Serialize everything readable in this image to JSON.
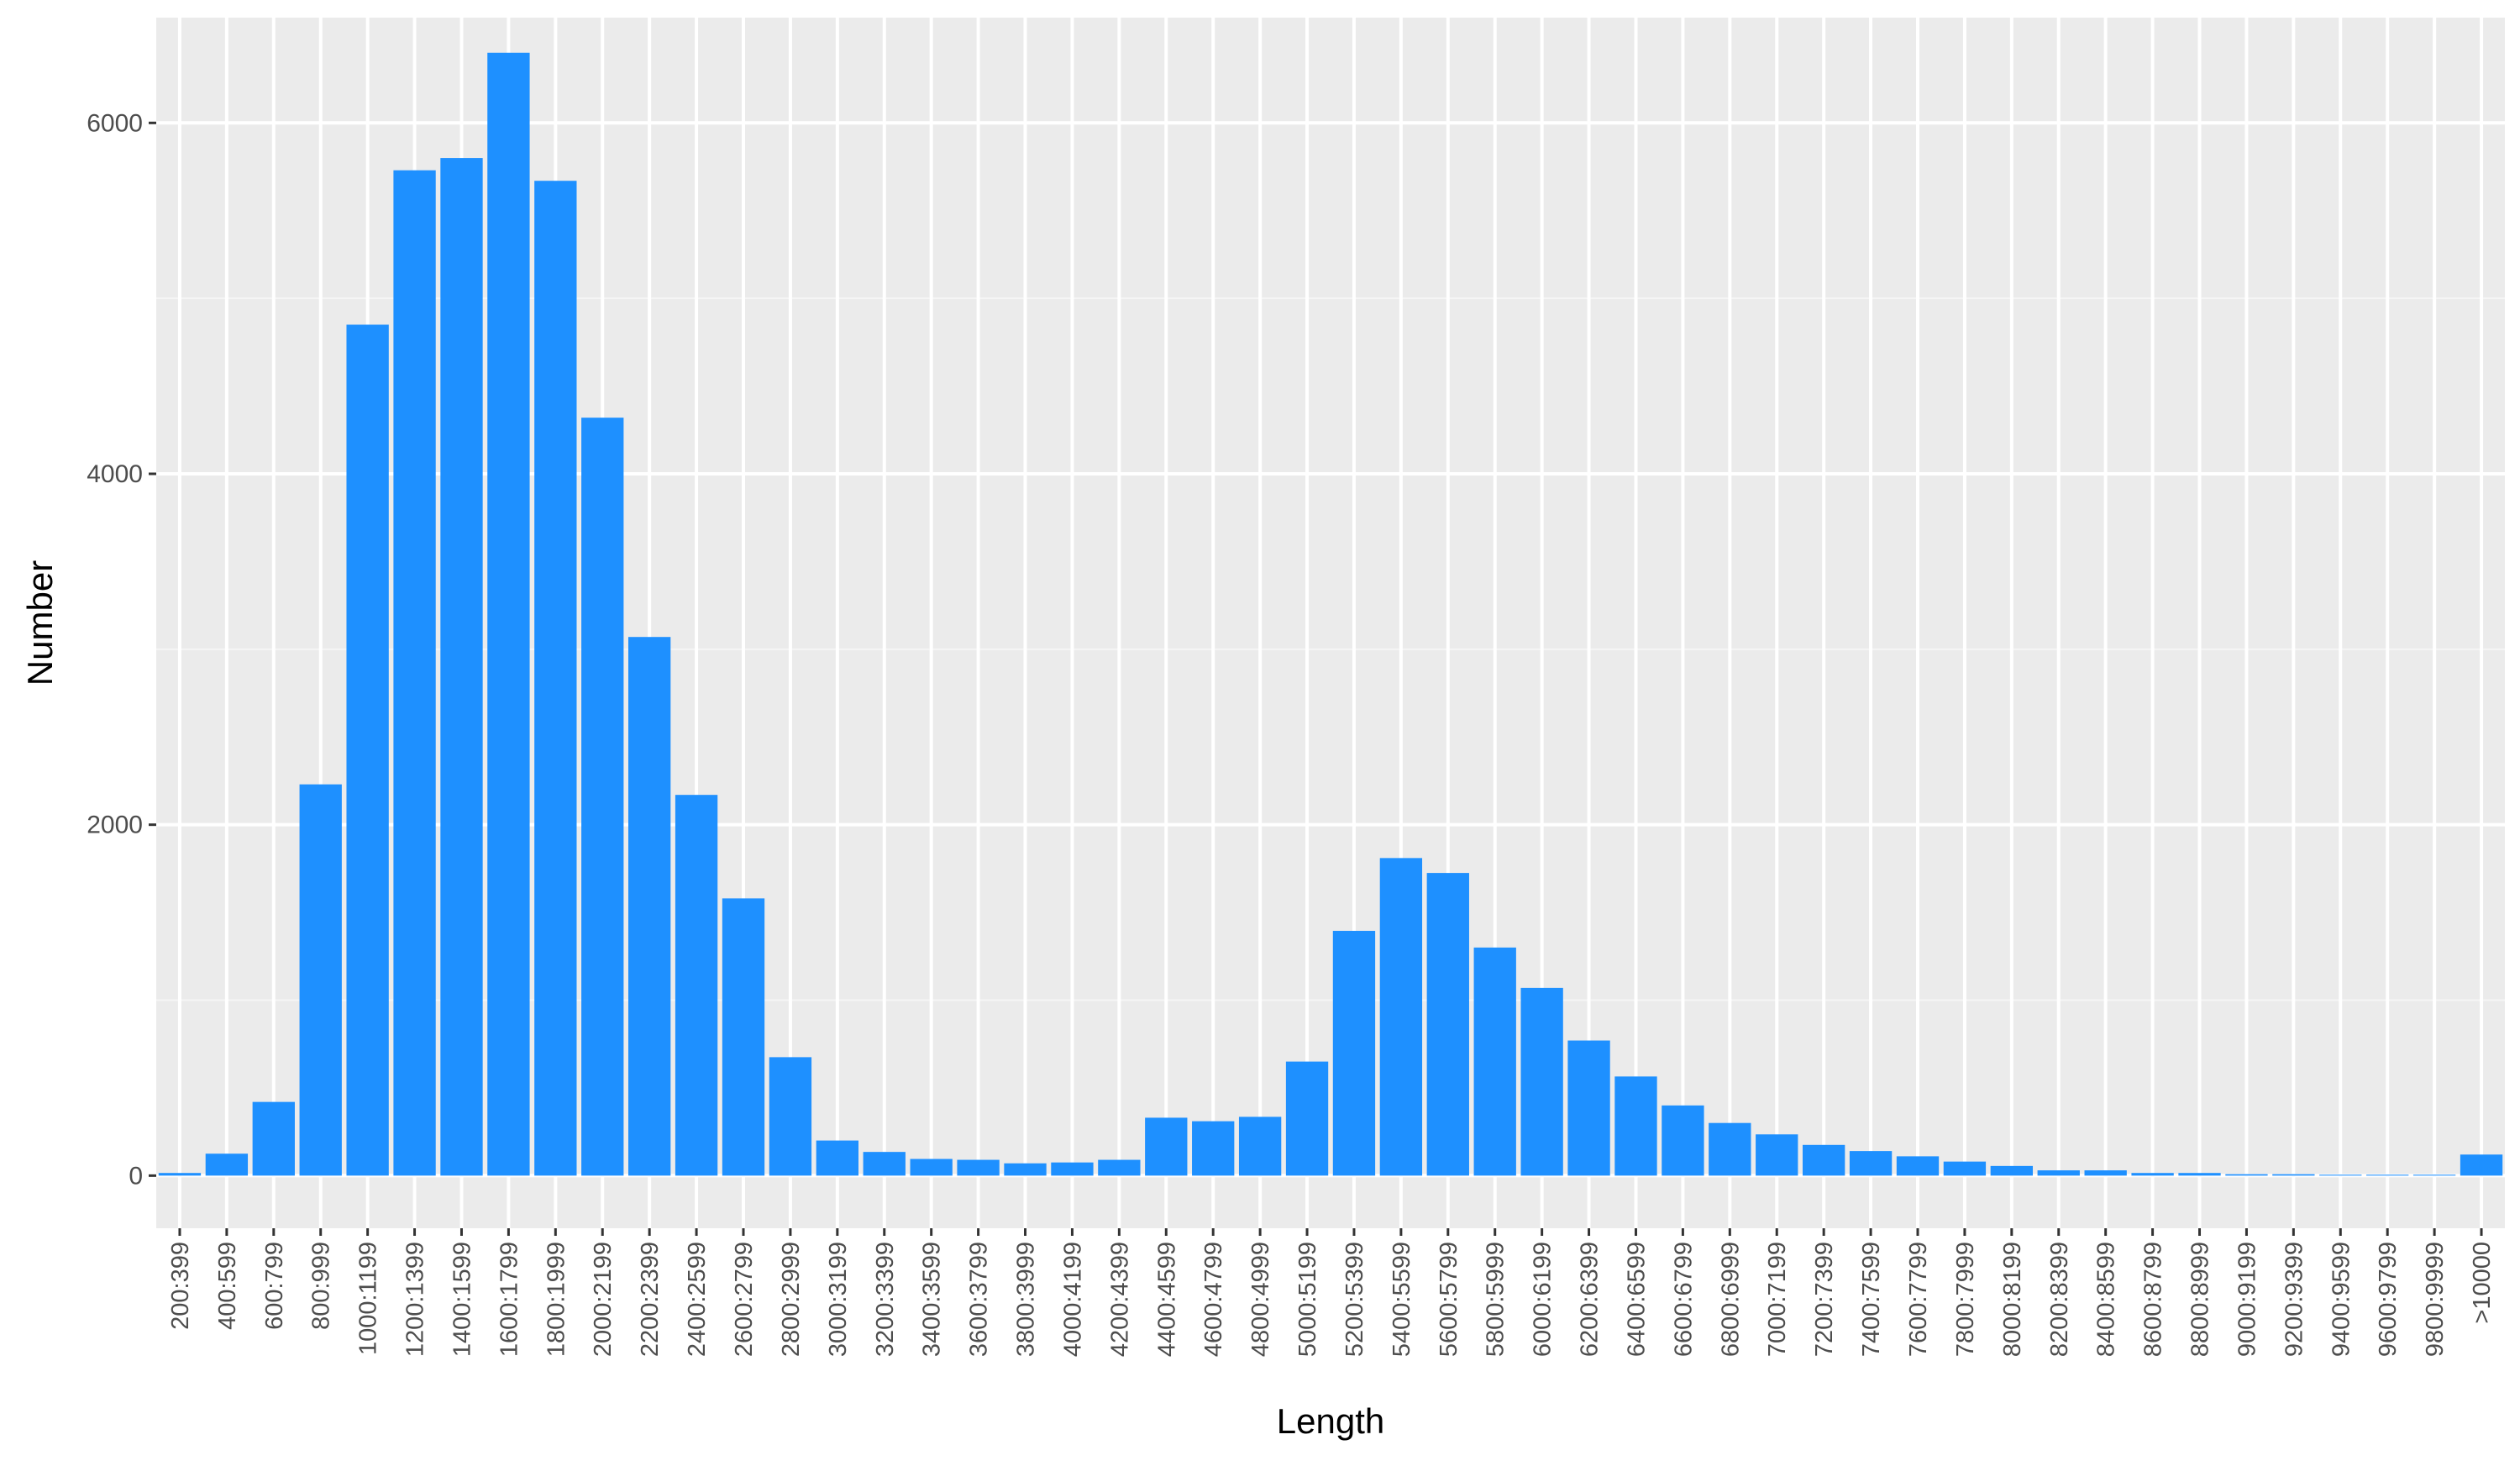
{
  "chart_data": {
    "type": "bar",
    "title": "",
    "xlabel": "Length",
    "ylabel": "Number",
    "ylim": [
      -300,
      6600
    ],
    "yticks": [
      0,
      2000,
      4000,
      6000
    ],
    "grid": true,
    "legend": "none",
    "colors": {
      "bar": "#1e90ff",
      "panel": "#ebebeb",
      "grid_major": "#ffffff",
      "grid_minor": "#f5f5f5",
      "tick_label": "#4d4d4d",
      "axis_title": "#000000"
    },
    "categories": [
      "200:399",
      "400:599",
      "600:799",
      "800:999",
      "1000:1199",
      "1200:1399",
      "1400:1599",
      "1600:1799",
      "1800:1999",
      "2000:2199",
      "2200:2399",
      "2400:2599",
      "2600:2799",
      "2800:2999",
      "3000:3199",
      "3200:3399",
      "3400:3599",
      "3600:3799",
      "3800:3999",
      "4000:4199",
      "4200:4399",
      "4400:4599",
      "4600:4799",
      "4800:4999",
      "5000:5199",
      "5200:5399",
      "5400:5599",
      "5600:5799",
      "5800:5999",
      "6000:6199",
      "6200:6399",
      "6400:6599",
      "6600:6799",
      "6800:6999",
      "7000:7199",
      "7200:7399",
      "7400:7599",
      "7600:7799",
      "7800:7999",
      "8000:8199",
      "8200:8399",
      "8400:8599",
      "8600:8799",
      "8800:8999",
      "9000:9199",
      "9200:9399",
      "9400:9599",
      "9600:9799",
      "9800:9999",
      ">10000"
    ],
    "values": [
      15,
      125,
      420,
      2230,
      4850,
      5730,
      5800,
      6400,
      5670,
      4320,
      3070,
      2170,
      1580,
      675,
      200,
      135,
      95,
      90,
      70,
      75,
      90,
      330,
      310,
      335,
      650,
      1395,
      1810,
      1725,
      1300,
      1070,
      770,
      565,
      400,
      300,
      235,
      175,
      140,
      110,
      80,
      55,
      30,
      30,
      15,
      15,
      8,
      8,
      5,
      5,
      5,
      120
    ]
  }
}
